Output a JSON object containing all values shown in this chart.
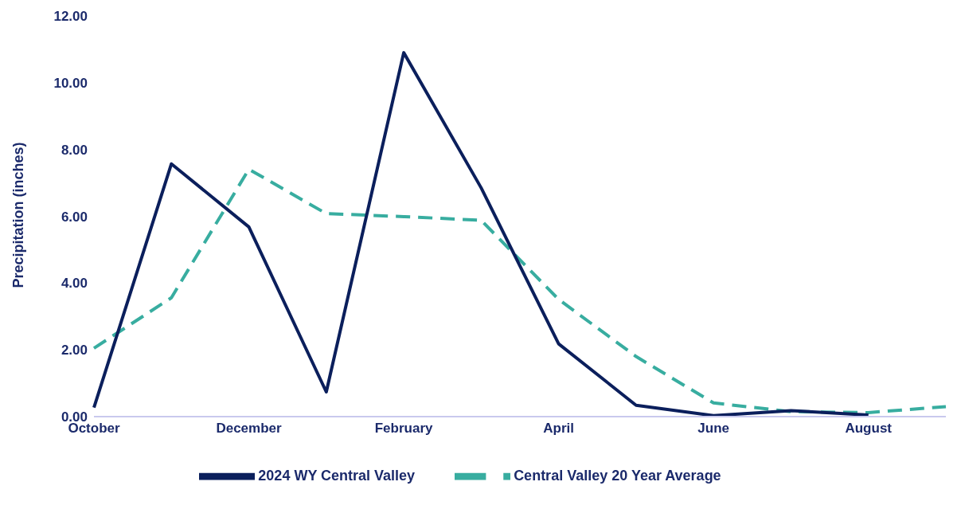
{
  "chart_data": {
    "type": "line",
    "ylabel": "Precipitation (inches)",
    "categories": [
      "October",
      null,
      "December",
      null,
      "February",
      null,
      "April",
      null,
      "June",
      null,
      "August",
      null
    ],
    "series": [
      {
        "name": "Central Valley 20 Year Average",
        "color": "#38ada0",
        "line_style": "dashed",
        "values": [
          2.05,
          3.56,
          7.41,
          6.08,
          5.99,
          5.88,
          3.51,
          1.8,
          0.41,
          0.15,
          0.12,
          0.3
        ]
      },
      {
        "name": "2024 WY Central Valley",
        "color": "#0b1f5c",
        "line_style": "solid",
        "values": [
          0.27,
          7.57,
          5.68,
          0.74,
          10.9,
          6.85,
          2.18,
          0.34,
          0.03,
          0.18,
          0.05,
          null
        ]
      }
    ],
    "ylim": [
      0,
      12
    ],
    "yticks": [
      {
        "value": 0,
        "label": "0.00"
      },
      {
        "value": 2,
        "label": "2.00"
      },
      {
        "value": 4,
        "label": "4.00"
      },
      {
        "value": 6,
        "label": "6.00"
      },
      {
        "value": 8,
        "label": "8.00"
      },
      {
        "value": 10,
        "label": "10.00"
      },
      {
        "value": 12,
        "label": "12.00"
      }
    ],
    "grid": false,
    "legend": "bottom",
    "marker": "none"
  }
}
